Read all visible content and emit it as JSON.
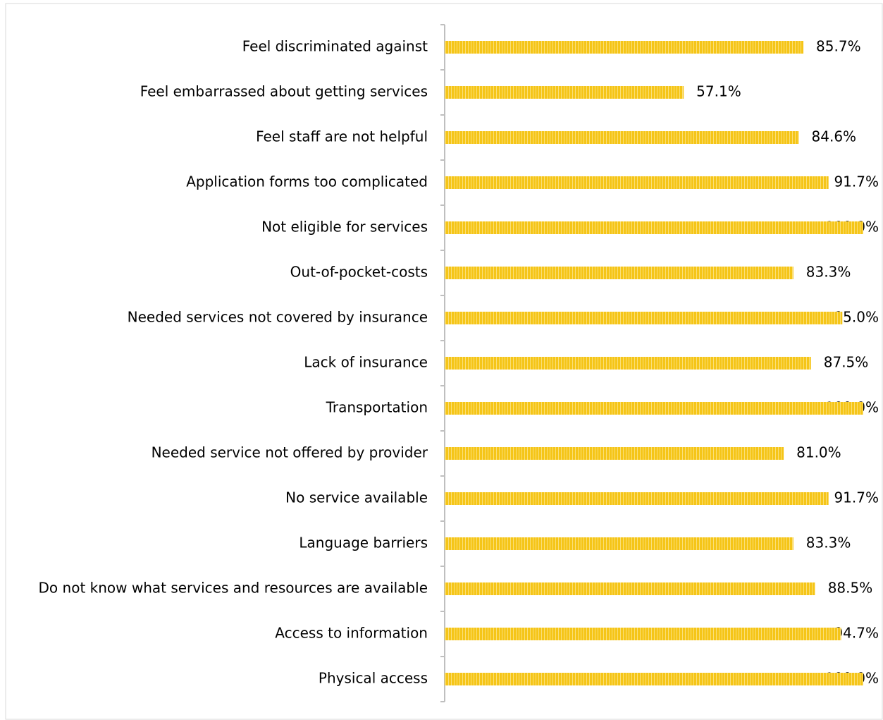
{
  "chart_data": {
    "type": "bar",
    "orientation": "horizontal",
    "color": "#f5c518",
    "categories": [
      "Feel discriminated against",
      "Feel embarrassed about getting services",
      "Feel staff are not helpful",
      "Application forms too complicated",
      "Not eligible for services",
      "Out-of-pocket-costs",
      "Needed services not covered by insurance",
      "Lack of insurance",
      "Transportation",
      "Needed service not offered by provider",
      "No service available",
      "Language barriers",
      "Do not know what services and resources are available",
      "Access to information",
      "Physical access"
    ],
    "values": [
      85.7,
      57.1,
      84.6,
      91.7,
      100.0,
      83.3,
      95.0,
      87.5,
      100.0,
      81.0,
      91.7,
      83.3,
      88.5,
      94.7,
      100.0
    ],
    "value_labels": [
      "85.7%",
      "57.1%",
      "84.6%",
      "91.7%",
      "100.0%",
      "83.3%",
      "95.0%",
      "87.5%",
      "100.0%",
      "81.0%",
      "91.7%",
      "83.3%",
      "88.5%",
      "94.7%",
      "100.0%"
    ],
    "xlim": [
      0,
      100
    ]
  }
}
